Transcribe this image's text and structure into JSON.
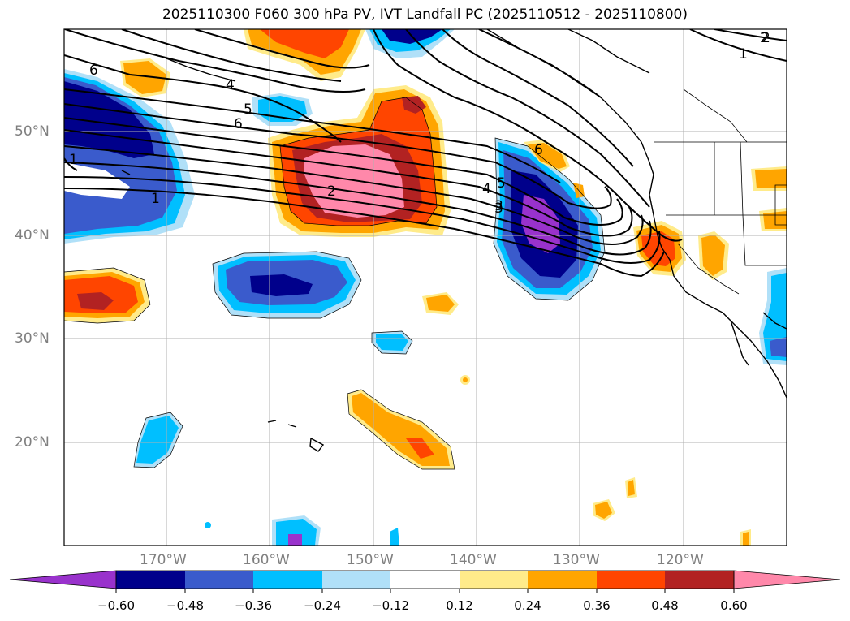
{
  "title": "2025110300 F060 300 hPa PV, IVT Landfall PC (2025110512 - 2025110800)",
  "latitude_labels": [
    "50°N",
    "40°N",
    "30°N",
    "20°N"
  ],
  "longitude_labels": [
    "170°W",
    "160°W",
    "150°W",
    "140°W",
    "130°W",
    "120°W"
  ],
  "contour_labels": [
    "6",
    "5",
    "6",
    "1",
    "2",
    "1",
    "2",
    "4",
    "3",
    "6",
    "2",
    "1",
    "4",
    "5",
    "3"
  ],
  "colorbar": {
    "ticks": [
      "−0.60",
      "−0.48",
      "−0.36",
      "−0.24",
      "−0.12",
      "0.12",
      "0.24",
      "0.36",
      "0.48",
      "0.60"
    ],
    "colors": [
      "#9932cc",
      "#00008b",
      "#3a5bcc",
      "#00bfff",
      "#b0e0f8",
      "#ffffff",
      "#ffeb8a",
      "#ffa500",
      "#ff4500",
      "#b22222",
      "#ff88aa"
    ]
  }
}
